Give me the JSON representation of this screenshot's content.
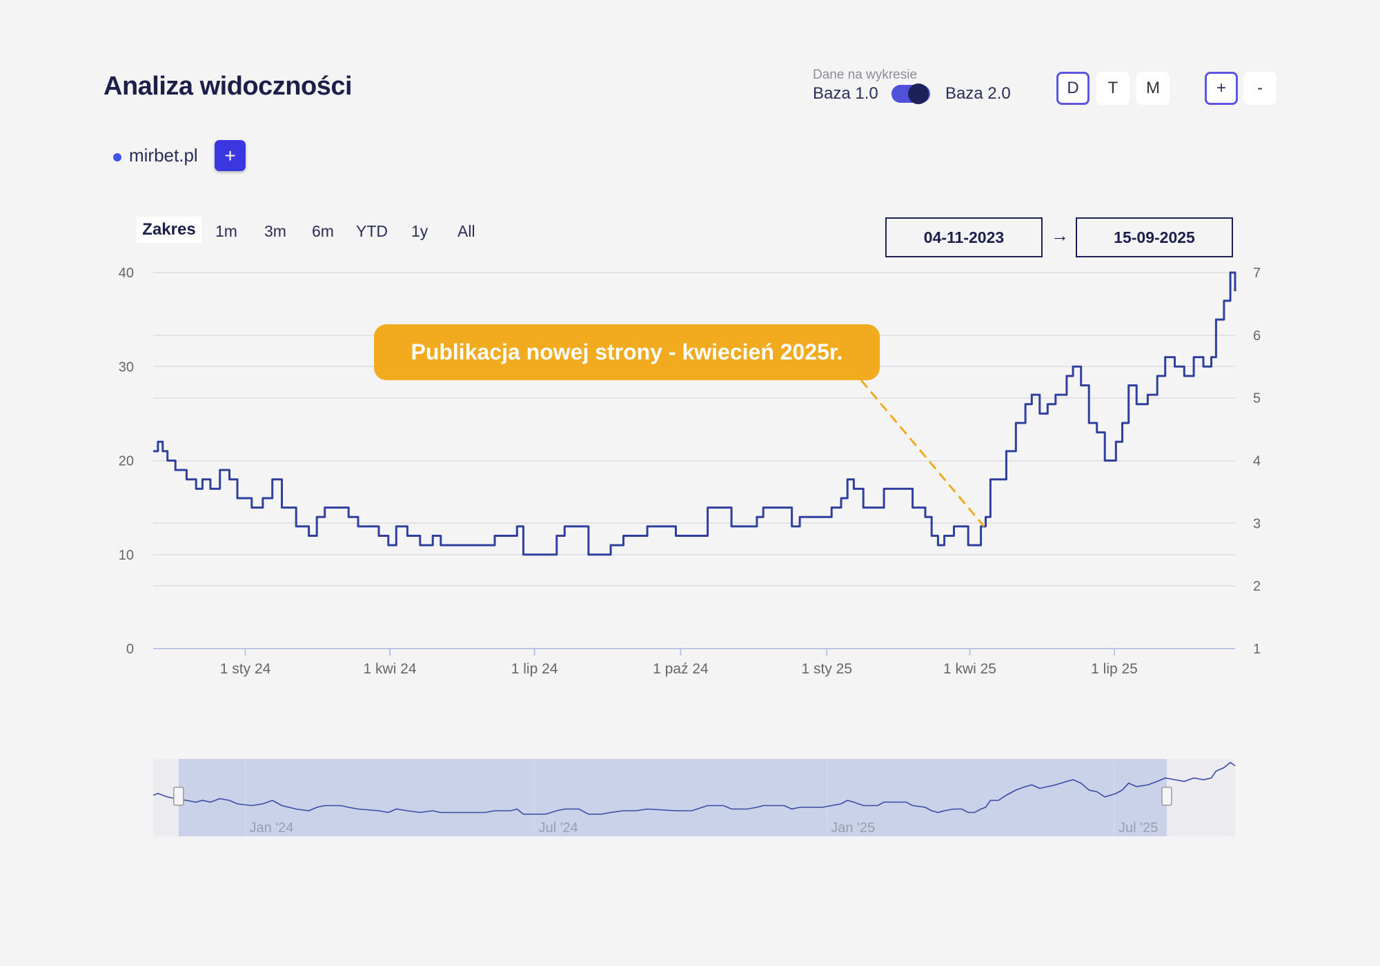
{
  "header": {
    "title": "Analiza widoczności",
    "toggle_caption": "Dane na wykresie",
    "base1_label": "Baza 1.0",
    "base2_label": "Baza 2.0",
    "granularity": [
      "D",
      "T",
      "M"
    ],
    "granularity_active": "D",
    "zoom_in": "+",
    "zoom_out": "-"
  },
  "legend": {
    "series_label": "mirbet.pl",
    "add_label": "+"
  },
  "range": {
    "label": "Zakres",
    "options": [
      "1m",
      "3m",
      "6m",
      "YTD",
      "1y",
      "All"
    ],
    "date_from": "04-11-2023",
    "date_to": "15-09-2025",
    "arrow": "→"
  },
  "annotation": {
    "text": "Publikacja nowej strony - kwiecień 2025r.",
    "date": "2025-04-10",
    "value": 13
  },
  "colors": {
    "series": "#2f3f9e",
    "accent": "#3a36e0",
    "annotation": "#f2ab1f",
    "navigator_fill": "#c9d2e8"
  },
  "chart_data": {
    "type": "line",
    "title": "",
    "xlabel": "",
    "ylabel": "",
    "ylim": [
      0,
      40
    ],
    "y2lim": [
      1,
      7
    ],
    "yticks": [
      0,
      10,
      20,
      30,
      40
    ],
    "y2ticks": [
      1,
      2,
      3,
      4,
      5,
      6,
      7
    ],
    "x_range": [
      "2023-11-04",
      "2025-09-15"
    ],
    "xticks": [
      {
        "date": "2024-01-01",
        "label": "1 sty 24"
      },
      {
        "date": "2024-04-01",
        "label": "1 kwi 24"
      },
      {
        "date": "2024-07-01",
        "label": "1 lip 24"
      },
      {
        "date": "2024-10-01",
        "label": "1 paź 24"
      },
      {
        "date": "2025-01-01",
        "label": "1 sty 25"
      },
      {
        "date": "2025-04-01",
        "label": "1 kwi 25"
      },
      {
        "date": "2025-07-01",
        "label": "1 lip 25"
      }
    ],
    "navigator": {
      "x_range": [
        "2023-11-04",
        "2025-09-15"
      ],
      "selection": [
        "2023-11-20",
        "2025-08-03"
      ],
      "ticks": [
        {
          "date": "2024-01-01",
          "label": "Jan '24"
        },
        {
          "date": "2024-07-01",
          "label": "Jul '24"
        },
        {
          "date": "2025-01-01",
          "label": "Jan '25"
        },
        {
          "date": "2025-07-01",
          "label": "Jul '25"
        }
      ]
    },
    "series": [
      {
        "name": "mirbet.pl",
        "points": [
          [
            "2023-11-04",
            21
          ],
          [
            "2023-11-07",
            22
          ],
          [
            "2023-11-10",
            21
          ],
          [
            "2023-11-13",
            20
          ],
          [
            "2023-11-18",
            19
          ],
          [
            "2023-11-25",
            18
          ],
          [
            "2023-12-01",
            17
          ],
          [
            "2023-12-05",
            18
          ],
          [
            "2023-12-10",
            17
          ],
          [
            "2023-12-16",
            19
          ],
          [
            "2023-12-22",
            18
          ],
          [
            "2023-12-27",
            16
          ],
          [
            "2024-01-05",
            15
          ],
          [
            "2024-01-12",
            16
          ],
          [
            "2024-01-18",
            18
          ],
          [
            "2024-01-24",
            15
          ],
          [
            "2024-02-02",
            13
          ],
          [
            "2024-02-10",
            12
          ],
          [
            "2024-02-15",
            14
          ],
          [
            "2024-02-20",
            15
          ],
          [
            "2024-03-01",
            15
          ],
          [
            "2024-03-06",
            14
          ],
          [
            "2024-03-12",
            13
          ],
          [
            "2024-03-25",
            12
          ],
          [
            "2024-03-31",
            11
          ],
          [
            "2024-04-05",
            13
          ],
          [
            "2024-04-12",
            12
          ],
          [
            "2024-04-20",
            11
          ],
          [
            "2024-04-28",
            12
          ],
          [
            "2024-05-03",
            11
          ],
          [
            "2024-05-31",
            11
          ],
          [
            "2024-06-06",
            12
          ],
          [
            "2024-06-16",
            12
          ],
          [
            "2024-06-20",
            13
          ],
          [
            "2024-06-24",
            10
          ],
          [
            "2024-07-08",
            10
          ],
          [
            "2024-07-15",
            12
          ],
          [
            "2024-07-20",
            13
          ],
          [
            "2024-07-29",
            13
          ],
          [
            "2024-08-04",
            10
          ],
          [
            "2024-08-12",
            10
          ],
          [
            "2024-08-18",
            11
          ],
          [
            "2024-08-26",
            12
          ],
          [
            "2024-09-03",
            12
          ],
          [
            "2024-09-10",
            13
          ],
          [
            "2024-09-28",
            12
          ],
          [
            "2024-10-08",
            12
          ],
          [
            "2024-10-18",
            15
          ],
          [
            "2024-10-28",
            15
          ],
          [
            "2024-11-02",
            13
          ],
          [
            "2024-11-12",
            13
          ],
          [
            "2024-11-18",
            14
          ],
          [
            "2024-11-22",
            15
          ],
          [
            "2024-12-05",
            15
          ],
          [
            "2024-12-10",
            13
          ],
          [
            "2024-12-15",
            14
          ],
          [
            "2024-12-29",
            14
          ],
          [
            "2025-01-04",
            15
          ],
          [
            "2025-01-10",
            16
          ],
          [
            "2025-01-14",
            18
          ],
          [
            "2025-01-18",
            17
          ],
          [
            "2025-01-24",
            15
          ],
          [
            "2025-02-02",
            15
          ],
          [
            "2025-02-06",
            17
          ],
          [
            "2025-02-20",
            17
          ],
          [
            "2025-02-24",
            15
          ],
          [
            "2025-03-04",
            14
          ],
          [
            "2025-03-08",
            12
          ],
          [
            "2025-03-12",
            11
          ],
          [
            "2025-03-16",
            12
          ],
          [
            "2025-03-22",
            13
          ],
          [
            "2025-03-27",
            13
          ],
          [
            "2025-03-31",
            11
          ],
          [
            "2025-04-04",
            11
          ],
          [
            "2025-04-08",
            13
          ],
          [
            "2025-04-11",
            14
          ],
          [
            "2025-04-14",
            18
          ],
          [
            "2025-04-19",
            18
          ],
          [
            "2025-04-24",
            21
          ],
          [
            "2025-04-30",
            24
          ],
          [
            "2025-05-06",
            26
          ],
          [
            "2025-05-10",
            27
          ],
          [
            "2025-05-15",
            25
          ],
          [
            "2025-05-20",
            26
          ],
          [
            "2025-05-25",
            27
          ],
          [
            "2025-06-01",
            29
          ],
          [
            "2025-06-05",
            30
          ],
          [
            "2025-06-10",
            28
          ],
          [
            "2025-06-15",
            24
          ],
          [
            "2025-06-20",
            23
          ],
          [
            "2025-06-25",
            20
          ],
          [
            "2025-07-02",
            22
          ],
          [
            "2025-07-06",
            24
          ],
          [
            "2025-07-10",
            28
          ],
          [
            "2025-07-15",
            26
          ],
          [
            "2025-07-22",
            27
          ],
          [
            "2025-07-28",
            29
          ],
          [
            "2025-08-02",
            31
          ],
          [
            "2025-08-08",
            30
          ],
          [
            "2025-08-14",
            29
          ],
          [
            "2025-08-20",
            31
          ],
          [
            "2025-08-26",
            30
          ],
          [
            "2025-08-31",
            31
          ],
          [
            "2025-09-03",
            35
          ],
          [
            "2025-09-08",
            37
          ],
          [
            "2025-09-12",
            40
          ],
          [
            "2025-09-15",
            38
          ]
        ]
      }
    ]
  }
}
